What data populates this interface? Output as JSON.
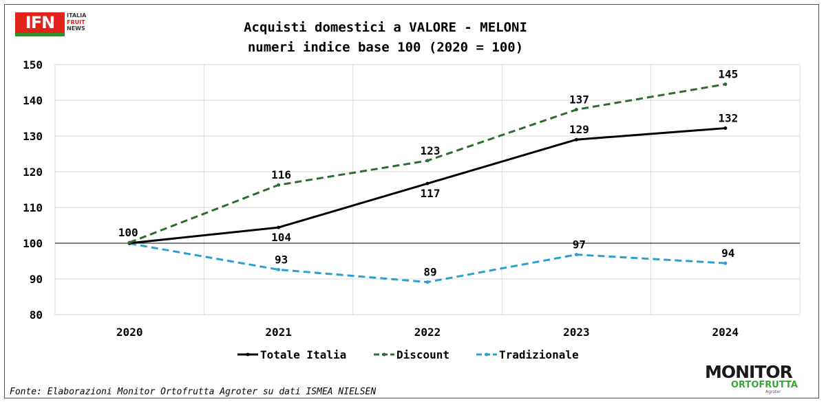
{
  "header": {
    "logo_main": "IFN",
    "logo_line1": "ITALIA",
    "logo_line2": "FRUIT",
    "logo_line3": "NEWS"
  },
  "footer": {
    "source": "Fonte: Elaborazioni Monitor Ortofrutta Agroter su dati ISMEA NIELSEN",
    "logo_top": "MONITOR",
    "logo_bottom": "ORTOFRUTTA",
    "logo_sub": "Agroter"
  },
  "colors": {
    "totale": "#000000",
    "discount": "#2e6b2e",
    "tradizionale": "#2aa0d0",
    "grid": "#d9d9d9"
  },
  "chart_data": {
    "type": "line",
    "title": "Acquisti domestici a VALORE - MELONI",
    "subtitle": "numeri indice base 100 (2020 = 100)",
    "xlabel": "",
    "ylabel": "",
    "categories": [
      "2020",
      "2021",
      "2022",
      "2023",
      "2024"
    ],
    "ylim": [
      80,
      150
    ],
    "yticks": [
      80,
      90,
      100,
      110,
      120,
      130,
      140,
      150
    ],
    "grid": true,
    "legend_position": "bottom",
    "series": [
      {
        "name": "Totale Italia",
        "values": [
          100,
          104.4,
          116.7,
          129,
          132.2
        ],
        "labels": [
          "",
          "104",
          "117",
          "129",
          "132"
        ],
        "label_side": [
          "",
          "below",
          "below",
          "above",
          "above"
        ],
        "style": "solid",
        "color_key": "totale"
      },
      {
        "name": "Discount",
        "values": [
          100.2,
          116.3,
          123.1,
          137.4,
          144.5
        ],
        "labels": [
          "100",
          "116",
          "123",
          "137",
          "145"
        ],
        "label_side": [
          "above",
          "above",
          "above",
          "above",
          "above"
        ],
        "style": "dashed",
        "color_key": "discount"
      },
      {
        "name": "Tradizionale",
        "values": [
          99.9,
          92.6,
          89.1,
          96.8,
          94.4
        ],
        "labels": [
          "",
          "93",
          "89",
          "97",
          "94"
        ],
        "label_side": [
          "",
          "above",
          "above",
          "above",
          "above"
        ],
        "style": "dashed",
        "color_key": "tradizionale"
      }
    ]
  }
}
